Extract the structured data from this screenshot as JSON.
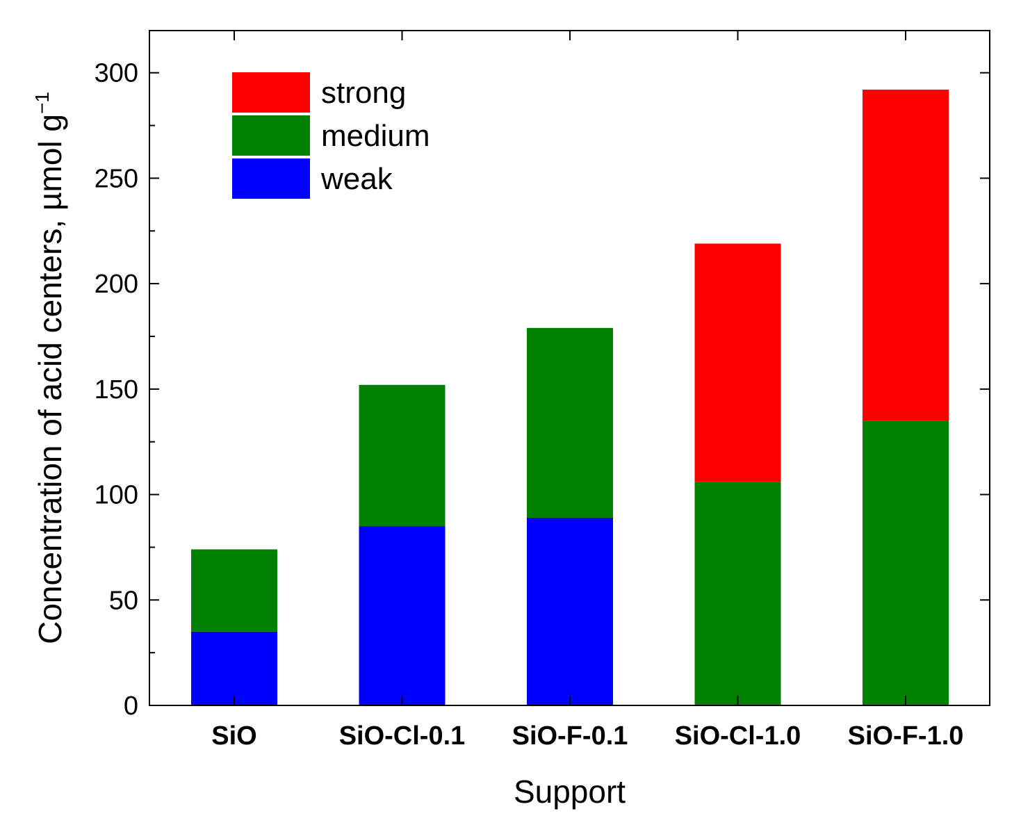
{
  "chart_data": {
    "type": "bar",
    "stacked": true,
    "title": "",
    "xlabel": "Support",
    "ylabel": "Concentration of acid centers, µmol g",
    "ylabel_superscript": "−1",
    "ylim": [
      0,
      320
    ],
    "yticks": [
      0,
      50,
      100,
      150,
      200,
      250,
      300
    ],
    "categories": [
      "SiO",
      "SiO-Cl-0.1",
      "SiO-F-0.1",
      "SiO-Cl-1.0",
      "SiO-F-1.0"
    ],
    "series": [
      {
        "name": "weak",
        "color": "#0000ff",
        "values": [
          35,
          85,
          89,
          0,
          0
        ]
      },
      {
        "name": "medium",
        "color": "#008000",
        "values": [
          39,
          67,
          90,
          106,
          135
        ]
      },
      {
        "name": "strong",
        "color": "#ff0000",
        "values": [
          0,
          0,
          0,
          113,
          157
        ]
      }
    ],
    "legend": {
      "position": "top-left",
      "order": [
        "strong",
        "medium",
        "weak"
      ]
    }
  }
}
